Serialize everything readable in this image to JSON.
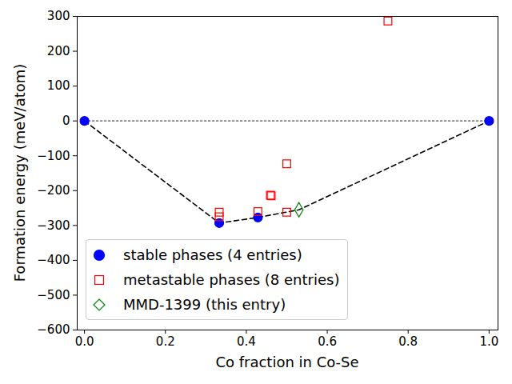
{
  "chart_data": {
    "type": "scatter",
    "xlabel": "Co fraction in Co-Se",
    "ylabel": "Formation energy (meV/atom)",
    "xlim": [
      -0.018,
      1.022
    ],
    "ylim": [
      -600,
      300
    ],
    "xticks": [
      {
        "value": 0,
        "label": "0.0"
      },
      {
        "value": 0.2,
        "label": "0.2"
      },
      {
        "value": 0.4,
        "label": "0.4"
      },
      {
        "value": 0.6,
        "label": "0.6"
      },
      {
        "value": 0.8,
        "label": "0.8"
      },
      {
        "value": 1,
        "label": "1.0"
      }
    ],
    "yticks": [
      -600,
      -500,
      -400,
      -300,
      -200,
      -100,
      0,
      100,
      200,
      300
    ],
    "legend": "lower left",
    "series": [
      {
        "type": "line",
        "line_style": "dotted",
        "color": "gray",
        "x": [
          0,
          1
        ],
        "y": [
          0,
          0
        ]
      },
      {
        "type": "line",
        "line_style": "dashed",
        "color": "black",
        "x": [
          0,
          0.333,
          0.4286,
          0.53,
          1
        ],
        "y": [
          0,
          -293,
          -277,
          -255,
          0
        ]
      },
      {
        "name": "stable phases (4 entries)",
        "type": "scatter",
        "color": "blue",
        "marker": "circle",
        "x": [
          0,
          0.333,
          0.4286,
          1
        ],
        "y": [
          0,
          -293,
          -277,
          0
        ]
      },
      {
        "name": "metastable phases (8 entries)",
        "type": "scatter",
        "color": "red",
        "marker": "square-open",
        "x": [
          0.333,
          0.333,
          0.4286,
          0.4595,
          0.4615,
          0.5,
          0.5,
          0.75
        ],
        "y": [
          -262,
          -275,
          -260,
          -213,
          -215,
          -123,
          -262,
          287
        ]
      },
      {
        "name": "MMD-1399 (this entry)",
        "type": "scatter",
        "color": "green",
        "marker": "diamond-open",
        "x": [
          0.53
        ],
        "y": [
          -255
        ]
      }
    ]
  }
}
